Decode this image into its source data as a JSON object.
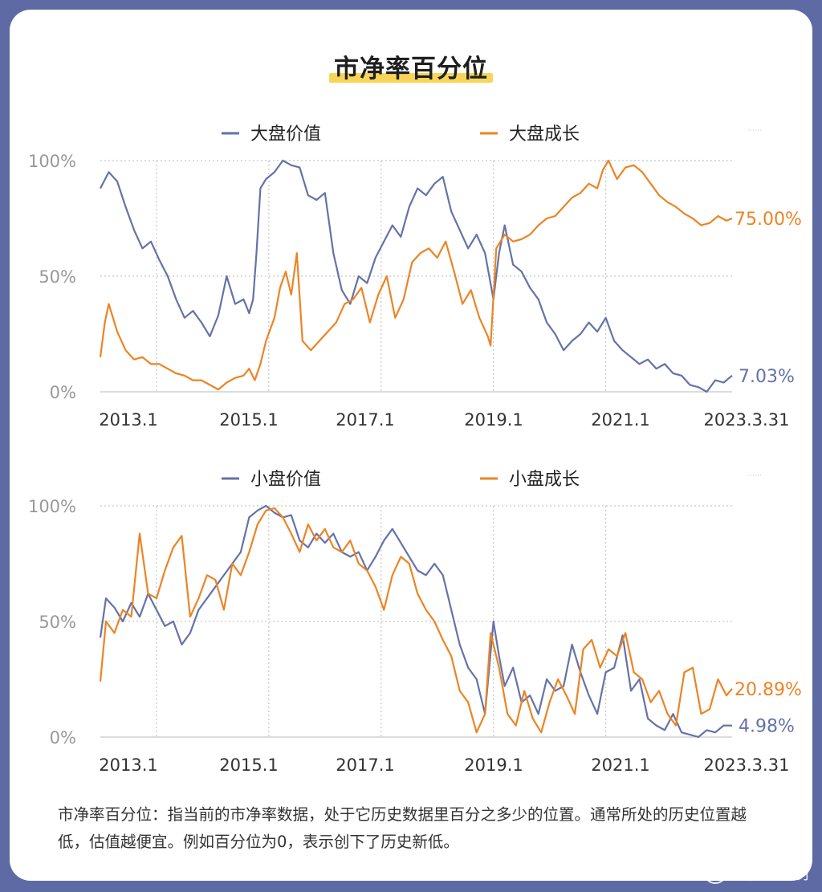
{
  "title": "市净率百分位",
  "colors": {
    "value": "#6572a8",
    "growth": "#ec8424",
    "grid": "#c7c7c7",
    "axis_text": "#999999"
  },
  "footnote": "市净率百分位：指当前的市净率数据，处于它历史数据里百分之多少的位置。通常所处的历史位置越低，估值越便宜。例如百分位为0，表示创下了历史新低。",
  "watermark": "银行螺丝钉",
  "chart_data": [
    {
      "type": "line",
      "title": "",
      "xlabel": "",
      "ylabel": "",
      "ylim": [
        0,
        100
      ],
      "y_ticks": [
        "0%",
        "50%",
        "100%"
      ],
      "x_ticks": [
        {
          "label": "2013.1",
          "t": 2013.0
        },
        {
          "label": "2015.1",
          "t": 2015.0
        },
        {
          "label": "2017.1",
          "t": 2017.0
        },
        {
          "label": "2019.1",
          "t": 2019.0
        },
        {
          "label": "2021.1",
          "t": 2021.0
        },
        {
          "label": "2023.3.31",
          "t": 2023.25
        }
      ],
      "series": [
        {
          "name": "大盘价值",
          "color": "value",
          "x": [
            2012.0,
            2012.15,
            2012.3,
            2012.45,
            2012.6,
            2012.75,
            2012.9,
            2013.05,
            2013.2,
            2013.35,
            2013.5,
            2013.65,
            2013.8,
            2013.95,
            2014.1,
            2014.25,
            2014.4,
            2014.55,
            2014.65,
            2014.72,
            2014.78,
            2014.85,
            2014.95,
            2015.1,
            2015.25,
            2015.4,
            2015.55,
            2015.7,
            2015.85,
            2016.0,
            2016.15,
            2016.3,
            2016.45,
            2016.6,
            2016.75,
            2016.9,
            2017.05,
            2017.2,
            2017.35,
            2017.5,
            2017.65,
            2017.8,
            2017.95,
            2018.1,
            2018.25,
            2018.4,
            2018.55,
            2018.7,
            2018.85,
            2019.0,
            2019.1,
            2019.2,
            2019.35,
            2019.5,
            2019.65,
            2019.8,
            2019.95,
            2020.1,
            2020.25,
            2020.4,
            2020.55,
            2020.7,
            2020.85,
            2021.0,
            2021.15,
            2021.3,
            2021.45,
            2021.6,
            2021.75,
            2021.9,
            2022.05,
            2022.2,
            2022.35,
            2022.5,
            2022.65,
            2022.8,
            2022.95,
            2023.1,
            2023.25
          ],
          "y": [
            88,
            95,
            91,
            80,
            70,
            62,
            65,
            57,
            50,
            40,
            32,
            35,
            30,
            24,
            33,
            50,
            38,
            40,
            34,
            40,
            60,
            88,
            92,
            95,
            100,
            98,
            97,
            85,
            83,
            86,
            60,
            44,
            38,
            50,
            47,
            58,
            65,
            72,
            67,
            80,
            88,
            85,
            90,
            93,
            78,
            70,
            62,
            68,
            60,
            40,
            60,
            72,
            55,
            52,
            45,
            40,
            30,
            25,
            18,
            22,
            25,
            30,
            26,
            32,
            22,
            18,
            15,
            12,
            14,
            10,
            12,
            8,
            7,
            3,
            2,
            0,
            5,
            4,
            7.03
          ]
        },
        {
          "name": "大盘成长",
          "color": "growth",
          "x": [
            2012.0,
            2012.08,
            2012.15,
            2012.3,
            2012.45,
            2012.6,
            2012.75,
            2012.9,
            2013.05,
            2013.2,
            2013.35,
            2013.5,
            2013.65,
            2013.8,
            2013.95,
            2014.1,
            2014.25,
            2014.4,
            2014.55,
            2014.65,
            2014.75,
            2014.85,
            2014.95,
            2015.1,
            2015.2,
            2015.3,
            2015.4,
            2015.5,
            2015.6,
            2015.75,
            2015.9,
            2016.05,
            2016.2,
            2016.35,
            2016.5,
            2016.65,
            2016.8,
            2016.95,
            2017.1,
            2017.25,
            2017.4,
            2017.55,
            2017.7,
            2017.85,
            2018.0,
            2018.15,
            2018.3,
            2018.45,
            2018.6,
            2018.75,
            2018.9,
            2018.95,
            2019.05,
            2019.2,
            2019.35,
            2019.5,
            2019.65,
            2019.8,
            2019.95,
            2020.1,
            2020.25,
            2020.4,
            2020.55,
            2020.7,
            2020.85,
            2020.95,
            2021.05,
            2021.2,
            2021.35,
            2021.5,
            2021.65,
            2021.8,
            2021.95,
            2022.1,
            2022.25,
            2022.4,
            2022.55,
            2022.7,
            2022.85,
            2023.0,
            2023.15,
            2023.25
          ],
          "y": [
            15,
            30,
            38,
            26,
            18,
            14,
            15,
            12,
            12,
            10,
            8,
            7,
            5,
            5,
            3,
            1,
            4,
            6,
            7,
            10,
            5,
            12,
            22,
            32,
            45,
            52,
            42,
            60,
            22,
            18,
            22,
            26,
            30,
            38,
            40,
            45,
            30,
            42,
            50,
            32,
            40,
            56,
            60,
            62,
            58,
            65,
            52,
            38,
            44,
            32,
            24,
            20,
            62,
            68,
            65,
            66,
            68,
            72,
            75,
            76,
            80,
            84,
            86,
            90,
            88,
            96,
            100,
            92,
            97,
            98,
            95,
            90,
            85,
            82,
            80,
            77,
            75,
            72,
            73,
            76,
            74,
            75
          ]
        }
      ],
      "end_labels": [
        "7.03%",
        "75.00%"
      ]
    },
    {
      "type": "line",
      "title": "",
      "xlabel": "",
      "ylabel": "",
      "ylim": [
        0,
        100
      ],
      "y_ticks": [
        "0%",
        "50%",
        "100%"
      ],
      "x_ticks": [
        {
          "label": "2013.1",
          "t": 2013.0
        },
        {
          "label": "2015.1",
          "t": 2015.0
        },
        {
          "label": "2017.1",
          "t": 2017.0
        },
        {
          "label": "2019.1",
          "t": 2019.0
        },
        {
          "label": "2021.1",
          "t": 2021.0
        },
        {
          "label": "2023.3.31",
          "t": 2023.25
        }
      ],
      "series": [
        {
          "name": "小盘价值",
          "color": "value",
          "x": [
            2012.0,
            2012.1,
            2012.25,
            2012.4,
            2012.55,
            2012.7,
            2012.85,
            2013.0,
            2013.15,
            2013.3,
            2013.45,
            2013.6,
            2013.75,
            2013.9,
            2014.05,
            2014.2,
            2014.35,
            2014.5,
            2014.65,
            2014.8,
            2014.95,
            2015.1,
            2015.25,
            2015.4,
            2015.55,
            2015.7,
            2015.85,
            2016.0,
            2016.15,
            2016.3,
            2016.45,
            2016.6,
            2016.75,
            2016.9,
            2017.05,
            2017.2,
            2017.35,
            2017.5,
            2017.65,
            2017.8,
            2017.95,
            2018.1,
            2018.25,
            2018.4,
            2018.55,
            2018.7,
            2018.85,
            2019.0,
            2019.1,
            2019.2,
            2019.35,
            2019.5,
            2019.65,
            2019.8,
            2019.95,
            2020.1,
            2020.25,
            2020.4,
            2020.55,
            2020.7,
            2020.85,
            2021.0,
            2021.15,
            2021.3,
            2021.45,
            2021.6,
            2021.75,
            2021.9,
            2022.05,
            2022.2,
            2022.35,
            2022.5,
            2022.65,
            2022.8,
            2022.95,
            2023.1,
            2023.25
          ],
          "y": [
            43,
            60,
            56,
            50,
            58,
            52,
            62,
            55,
            48,
            50,
            40,
            45,
            55,
            60,
            65,
            70,
            75,
            80,
            95,
            98,
            100,
            97,
            95,
            96,
            85,
            82,
            88,
            84,
            88,
            80,
            78,
            80,
            72,
            78,
            85,
            90,
            84,
            78,
            72,
            70,
            75,
            70,
            55,
            40,
            30,
            25,
            10,
            50,
            35,
            22,
            30,
            15,
            18,
            10,
            25,
            20,
            22,
            40,
            28,
            18,
            10,
            28,
            30,
            44,
            20,
            25,
            8,
            5,
            3,
            10,
            2,
            1,
            0,
            3,
            2,
            5,
            4.98
          ]
        },
        {
          "name": "小盘成长",
          "color": "growth",
          "x": [
            2012.0,
            2012.1,
            2012.25,
            2012.4,
            2012.55,
            2012.7,
            2012.85,
            2013.0,
            2013.15,
            2013.3,
            2013.45,
            2013.6,
            2013.75,
            2013.9,
            2014.05,
            2014.2,
            2014.35,
            2014.5,
            2014.65,
            2014.8,
            2014.95,
            2015.1,
            2015.25,
            2015.4,
            2015.55,
            2015.7,
            2015.85,
            2016.0,
            2016.15,
            2016.3,
            2016.45,
            2016.6,
            2016.75,
            2016.9,
            2017.05,
            2017.2,
            2017.35,
            2017.5,
            2017.65,
            2017.8,
            2017.95,
            2018.1,
            2018.25,
            2018.4,
            2018.55,
            2018.7,
            2018.85,
            2018.95,
            2019.1,
            2019.25,
            2019.4,
            2019.55,
            2019.7,
            2019.85,
            2020.0,
            2020.15,
            2020.3,
            2020.45,
            2020.6,
            2020.75,
            2020.9,
            2021.05,
            2021.2,
            2021.35,
            2021.5,
            2021.65,
            2021.8,
            2021.95,
            2022.1,
            2022.25,
            2022.4,
            2022.55,
            2022.7,
            2022.85,
            2023.0,
            2023.15,
            2023.25
          ],
          "y": [
            24,
            50,
            45,
            55,
            52,
            88,
            62,
            60,
            72,
            82,
            87,
            52,
            60,
            70,
            68,
            55,
            75,
            70,
            80,
            92,
            98,
            99,
            95,
            88,
            80,
            92,
            85,
            90,
            82,
            80,
            85,
            75,
            72,
            65,
            55,
            70,
            78,
            75,
            62,
            55,
            50,
            42,
            35,
            20,
            15,
            2,
            10,
            45,
            30,
            10,
            5,
            20,
            8,
            2,
            15,
            25,
            18,
            10,
            38,
            42,
            30,
            38,
            35,
            45,
            28,
            25,
            15,
            20,
            10,
            5,
            28,
            30,
            10,
            12,
            25,
            18,
            20.89
          ]
        }
      ],
      "end_labels": [
        "4.98%",
        "20.89%"
      ]
    }
  ]
}
